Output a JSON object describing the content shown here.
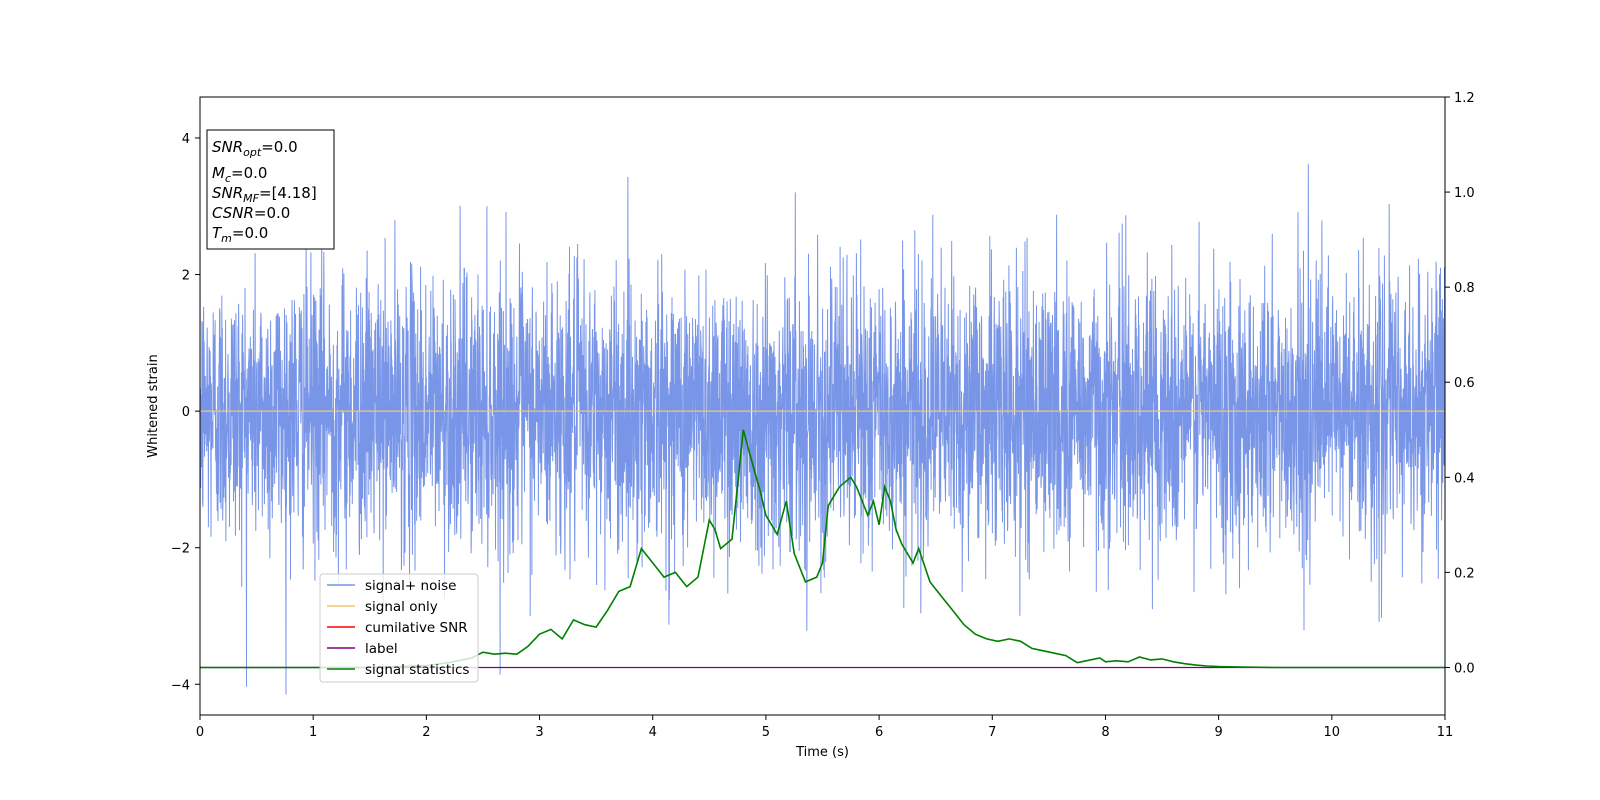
{
  "chart_data": {
    "type": "line",
    "xlabel": "Time (s)",
    "ylabel": "Whitened strain",
    "xlim": [
      0,
      11
    ],
    "ylim": [
      -4.45,
      4.6
    ],
    "y2lim": [
      -0.1,
      1.2
    ],
    "xticks": [
      "0",
      "1",
      "2",
      "3",
      "4",
      "5",
      "6",
      "7",
      "8",
      "9",
      "10",
      "11"
    ],
    "yticks": [
      "4",
      "2",
      "0",
      "−2",
      "−4"
    ],
    "y2ticks": [
      "1.2",
      "1.0",
      "0.8",
      "0.6",
      "0.4",
      "0.2",
      "0.0"
    ],
    "grid": false,
    "legend_position": "lower-left",
    "noise_amplitude_std": 1.0,
    "annotation": {
      "lines": [
        {
          "label": "SNR",
          "sub": "opt",
          "value": "=0.0"
        },
        {
          "label": "M",
          "sub": "c",
          "value": "=0.0"
        },
        {
          "label": "SNR",
          "sub": "MF",
          "value": "=[4.18]"
        },
        {
          "label": "CSNR",
          "sub": "",
          "value": "=0.0"
        },
        {
          "label": "T",
          "sub": "m",
          "value": "=0.0"
        }
      ]
    },
    "series": [
      {
        "name": "signal+ noise",
        "color": "#7895e8",
        "axis": "left"
      },
      {
        "name": "signal only",
        "color": "#f5c56f",
        "axis": "left",
        "x": [
          0,
          11
        ],
        "y": [
          0,
          0
        ]
      },
      {
        "name": "cumilative SNR",
        "color": "#ff0000",
        "axis": "left",
        "x": [],
        "y": []
      },
      {
        "name": "label",
        "color": "#800080",
        "axis": "right",
        "x": [
          0,
          11
        ],
        "y": [
          0,
          0
        ]
      },
      {
        "name": "signal statistics",
        "color": "#008000",
        "axis": "right",
        "x": [
          0,
          0.5,
          1,
          1.5,
          2,
          2.2,
          2.4,
          2.5,
          2.6,
          2.7,
          2.8,
          2.9,
          3.0,
          3.1,
          3.2,
          3.3,
          3.4,
          3.5,
          3.6,
          3.7,
          3.8,
          3.9,
          4.0,
          4.1,
          4.2,
          4.3,
          4.4,
          4.5,
          4.55,
          4.6,
          4.7,
          4.8,
          4.88,
          4.95,
          5.0,
          5.1,
          5.18,
          5.25,
          5.35,
          5.45,
          5.5,
          5.55,
          5.65,
          5.75,
          5.8,
          5.9,
          5.95,
          6.0,
          6.05,
          6.1,
          6.15,
          6.2,
          6.3,
          6.35,
          6.45,
          6.55,
          6.65,
          6.75,
          6.85,
          6.95,
          7.05,
          7.15,
          7.25,
          7.35,
          7.45,
          7.55,
          7.65,
          7.75,
          7.85,
          7.95,
          8.0,
          8.1,
          8.2,
          8.3,
          8.4,
          8.5,
          8.6,
          8.7,
          8.8,
          8.9,
          9.0,
          9.2,
          9.5,
          10,
          10.5,
          11
        ],
        "y": [
          0,
          0,
          0,
          0,
          0.004,
          0.01,
          0.02,
          0.032,
          0.028,
          0.03,
          0.028,
          0.045,
          0.07,
          0.08,
          0.06,
          0.1,
          0.09,
          0.085,
          0.12,
          0.16,
          0.17,
          0.25,
          0.22,
          0.19,
          0.2,
          0.17,
          0.19,
          0.31,
          0.29,
          0.25,
          0.27,
          0.5,
          0.43,
          0.37,
          0.32,
          0.28,
          0.35,
          0.24,
          0.18,
          0.19,
          0.22,
          0.34,
          0.38,
          0.4,
          0.38,
          0.32,
          0.35,
          0.3,
          0.38,
          0.35,
          0.29,
          0.26,
          0.22,
          0.25,
          0.18,
          0.15,
          0.12,
          0.09,
          0.07,
          0.06,
          0.055,
          0.06,
          0.055,
          0.04,
          0.035,
          0.03,
          0.025,
          0.01,
          0.015,
          0.02,
          0.012,
          0.014,
          0.012,
          0.022,
          0.016,
          0.018,
          0.012,
          0.008,
          0.005,
          0.003,
          0.002,
          0.001,
          0,
          0,
          0,
          0
        ]
      }
    ]
  }
}
